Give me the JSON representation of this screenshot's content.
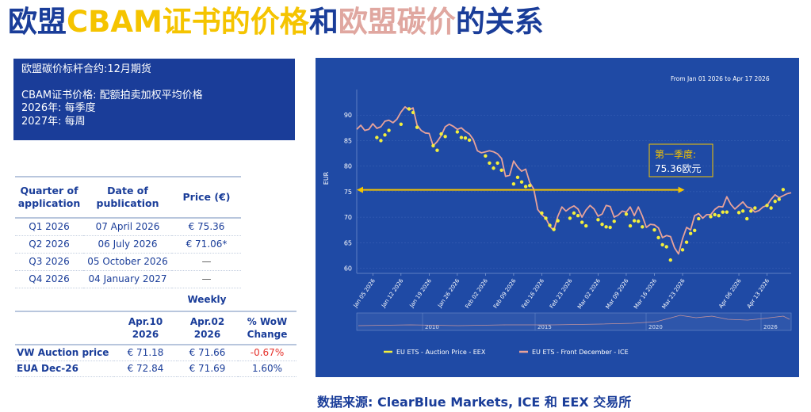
{
  "title": {
    "part1": "欧盟",
    "part2": "CBAM证书的价格",
    "part3": "和",
    "part4": "欧盟碳价",
    "part5": "的关系"
  },
  "info_box": {
    "line1": "欧盟碳价标杆合约:12月期货",
    "line2": "CBAM证书价格: 配额拍卖加权平均价格",
    "line3": "2026年: 每季度",
    "line4": "2027年: 每周"
  },
  "quarter_table": {
    "headers": [
      "Quarter of application",
      "Date of publication",
      "Price (€)"
    ],
    "rows": [
      [
        "Q1 2026",
        "07 April 2026",
        "€ 75.36"
      ],
      [
        "Q2 2026",
        "06 July 2026",
        "€ 71.06*"
      ],
      [
        "Q3 2026",
        "05 October 2026",
        "—"
      ],
      [
        "Q4 2026",
        "04 January 2027",
        "—"
      ]
    ]
  },
  "weekly_table": {
    "label": "Weekly",
    "headers": [
      "",
      "Apr.10 2026",
      "Apr.02 2026",
      "% WoW Change"
    ],
    "rows": [
      [
        "VW Auction price",
        "€ 71.18",
        "€ 71.66",
        "-0.67%"
      ],
      [
        "EUA Dec-26",
        "€ 72.84",
        "€ 71.69",
        "1.60%"
      ]
    ]
  },
  "source_text": "数据来源: ClearBlue Markets, ICE 和 EEX 交易所",
  "chart_data": {
    "type": "line",
    "range_label": "From   Jan 01 2026    to    Apr 17 2026",
    "ylabel": "EUR",
    "ylim": [
      59,
      95
    ],
    "yticks": [
      60,
      65,
      70,
      75,
      80,
      85,
      90
    ],
    "xlim_days": [
      0,
      108
    ],
    "xticks": [
      "Jan 05 2026",
      "Jan 12 2026",
      "Jan 19 2026",
      "Jan 26 2026",
      "Feb 02 2026",
      "Feb 09 2026",
      "Feb 16 2026",
      "Feb 23 2026",
      "Mar 02 2026",
      "Mar 09 2026",
      "Mar 16 2026",
      "Mar 23 2026",
      "Apr 06 2026",
      "Apr 13 2026"
    ],
    "xtick_days": [
      4,
      11,
      18,
      25,
      32,
      39,
      46,
      53,
      60,
      67,
      74,
      81,
      95,
      102
    ],
    "annotation": {
      "line1": "第一季度:",
      "line2": "75.36欧元",
      "value": 75.36
    },
    "navigator_labels": [
      "2010",
      "2015",
      "2020",
      "2026"
    ],
    "colors": {
      "auction": "#f3ef3c",
      "front": "#e8a29a",
      "panel": "#1f4aa5",
      "annotation": "#f5c400"
    },
    "series": [
      {
        "name": "EU ETS - Auction Price - EEX",
        "style": "markers",
        "days": [
          5,
          6,
          7,
          8,
          11,
          13,
          14,
          15,
          19,
          20,
          21,
          22,
          25,
          26,
          27,
          28,
          32,
          33,
          34,
          35,
          36,
          39,
          40,
          41,
          42,
          43,
          46,
          47,
          48,
          49,
          50,
          53,
          54,
          55,
          56,
          57,
          60,
          61,
          62,
          63,
          64,
          67,
          68,
          69,
          70,
          71,
          74,
          75,
          76,
          77,
          78,
          81,
          82,
          83,
          84,
          85,
          88,
          89,
          90,
          91,
          92,
          95,
          96,
          97,
          98,
          99,
          102,
          103,
          104,
          105,
          106
        ],
        "values": [
          85.6,
          85.0,
          86.1,
          87.0,
          88.2,
          91.2,
          90.5,
          87.6,
          84.0,
          83.1,
          86.3,
          85.8,
          86.7,
          85.6,
          85.5,
          85.1,
          82.0,
          80.6,
          79.6,
          80.6,
          79.2,
          76.5,
          77.8,
          76.9,
          76.0,
          76.2,
          70.8,
          69.8,
          68.4,
          67.6,
          69.3,
          69.8,
          70.8,
          70.3,
          69.0,
          68.3,
          69.5,
          68.6,
          68.1,
          68.0,
          69.2,
          70.6,
          68.3,
          69.3,
          69.2,
          68.1,
          67.5,
          66.0,
          64.6,
          64.2,
          61.6,
          63.6,
          65.1,
          66.8,
          67.4,
          69.7,
          70.1,
          70.5,
          70.3,
          71.0,
          71.0,
          70.9,
          71.2,
          69.7,
          71.2,
          71.8,
          72.3,
          71.8,
          73.1,
          73.5,
          75.4
        ]
      },
      {
        "name": "EU ETS - Front December - ICE",
        "style": "line",
        "days": [
          0,
          1,
          2,
          3,
          4,
          5,
          6,
          7,
          8,
          9,
          10,
          11,
          12,
          13,
          14,
          15,
          16,
          17,
          18,
          19,
          20,
          21,
          22,
          23,
          24,
          25,
          26,
          27,
          28,
          29,
          30,
          31,
          32,
          33,
          34,
          35,
          36,
          37,
          38,
          39,
          40,
          41,
          42,
          43,
          44,
          45,
          46,
          47,
          48,
          49,
          50,
          51,
          52,
          53,
          54,
          55,
          56,
          57,
          58,
          59,
          60,
          61,
          62,
          63,
          64,
          65,
          66,
          67,
          68,
          69,
          70,
          71,
          72,
          73,
          74,
          75,
          76,
          77,
          78,
          79,
          80,
          81,
          82,
          83,
          84,
          85,
          86,
          87,
          88,
          89,
          90,
          91,
          92,
          93,
          94,
          95,
          96,
          97,
          98,
          99,
          100,
          101,
          102,
          103,
          104,
          105,
          106,
          107,
          108
        ],
        "values": [
          87.2,
          88.0,
          87.0,
          87.2,
          88.3,
          87.4,
          87.7,
          88.8,
          89.0,
          88.5,
          89.2,
          90.6,
          91.6,
          91.0,
          91.4,
          88.0,
          87.0,
          86.5,
          86.4,
          84.0,
          84.8,
          86.0,
          87.7,
          88.2,
          87.8,
          87.2,
          87.5,
          86.8,
          86.3,
          85.2,
          83.0,
          82.6,
          82.8,
          83.0,
          82.8,
          82.4,
          81.5,
          78.0,
          78.2,
          81.0,
          79.8,
          79.0,
          79.4,
          76.8,
          75.5,
          71.5,
          70.5,
          69.8,
          68.2,
          67.4,
          70.2,
          72.0,
          71.2,
          71.8,
          72.2,
          71.6,
          70.0,
          71.4,
          72.3,
          71.6,
          70.2,
          70.6,
          72.3,
          72.1,
          70.0,
          70.4,
          71.2,
          71.0,
          72.0,
          70.3,
          72.0,
          70.2,
          68.0,
          68.6,
          68.5,
          67.9,
          66.0,
          66.4,
          66.2,
          64.0,
          62.8,
          65.8,
          68.0,
          67.5,
          70.3,
          70.7,
          69.8,
          70.5,
          70.5,
          71.5,
          72.1,
          72.0,
          74.0,
          72.5,
          71.6,
          72.3,
          73.0,
          72.0,
          71.8,
          71.0,
          71.3,
          72.0,
          72.3,
          73.5,
          74.4,
          73.8,
          74.2,
          74.6,
          74.8
        ]
      }
    ],
    "legend_placement": "bottom"
  }
}
